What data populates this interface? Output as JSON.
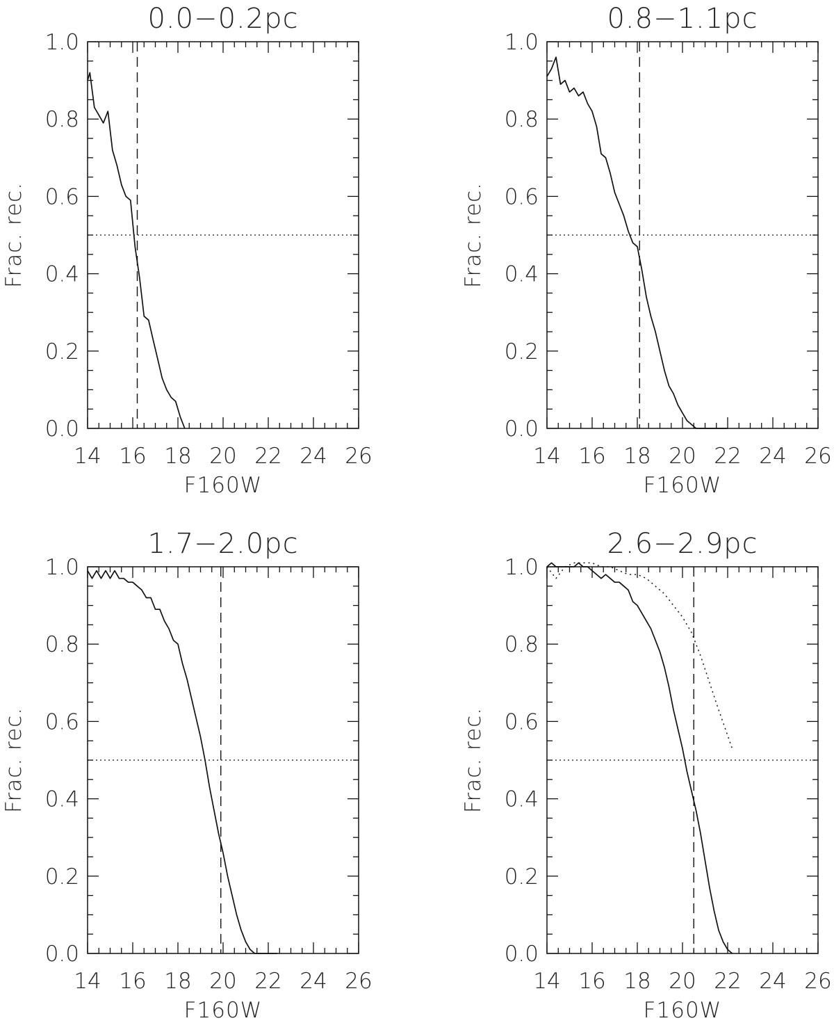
{
  "chart_data": [
    {
      "type": "line",
      "title": "0.0−0.2pc",
      "xlabel": "F160W",
      "ylabel": "Frac. rec.",
      "xlim": [
        14,
        26
      ],
      "ylim": [
        0,
        1.0
      ],
      "xticks": [
        "14",
        "16",
        "18",
        "20",
        "22",
        "24",
        "26"
      ],
      "yticks": [
        "0.0",
        "0.2",
        "0.4",
        "0.6",
        "0.8",
        "1.0"
      ],
      "grid": false,
      "series": [
        {
          "style": "solid",
          "x": [
            14.0,
            14.1,
            14.3,
            14.5,
            14.7,
            14.9,
            15.1,
            15.3,
            15.5,
            15.7,
            15.9,
            16.1,
            16.3,
            16.5,
            16.7,
            16.9,
            17.1,
            17.3,
            17.5,
            17.7,
            17.9,
            18.1,
            18.3
          ],
          "y": [
            0.9,
            0.92,
            0.83,
            0.81,
            0.79,
            0.82,
            0.72,
            0.68,
            0.63,
            0.6,
            0.59,
            0.47,
            0.39,
            0.29,
            0.28,
            0.23,
            0.18,
            0.13,
            0.1,
            0.08,
            0.07,
            0.03,
            0.0
          ]
        }
      ],
      "vline": 16.2,
      "hline": 0.5
    },
    {
      "type": "line",
      "title": "0.8−1.1pc",
      "xlabel": "F160W",
      "ylabel": "Frac. rec.",
      "xlim": [
        14,
        26
      ],
      "ylim": [
        0,
        1.0
      ],
      "xticks": [
        "14",
        "16",
        "18",
        "20",
        "22",
        "24",
        "26"
      ],
      "yticks": [
        "0.0",
        "0.2",
        "0.4",
        "0.6",
        "0.8",
        "1.0"
      ],
      "grid": false,
      "series": [
        {
          "style": "solid",
          "x": [
            14.0,
            14.2,
            14.4,
            14.6,
            14.8,
            15.0,
            15.2,
            15.4,
            15.6,
            15.8,
            16.0,
            16.2,
            16.4,
            16.6,
            16.8,
            17.0,
            17.2,
            17.4,
            17.6,
            17.8,
            18.0,
            18.2,
            18.4,
            18.6,
            18.8,
            19.0,
            19.2,
            19.4,
            19.6,
            19.8,
            20.0,
            20.2,
            20.4,
            20.6,
            20.8,
            21.0,
            21.2,
            21.4,
            21.6,
            21.8,
            22.0
          ],
          "y": [
            0.91,
            0.93,
            0.96,
            0.89,
            0.9,
            0.87,
            0.88,
            0.86,
            0.87,
            0.84,
            0.82,
            0.78,
            0.71,
            0.7,
            0.66,
            0.61,
            0.58,
            0.55,
            0.51,
            0.48,
            0.47,
            0.41,
            0.34,
            0.29,
            0.25,
            0.2,
            0.15,
            0.11,
            0.09,
            0.06,
            0.04,
            0.02,
            0.01,
            0.0,
            0.0,
            0.0,
            0.0,
            0.0,
            0.0,
            0.0,
            0.0
          ]
        }
      ],
      "vline": 18.1,
      "hline": 0.5
    },
    {
      "type": "line",
      "title": "1.7−2.0pc",
      "xlabel": "F160W",
      "ylabel": "Frac. rec.",
      "xlim": [
        14,
        26
      ],
      "ylim": [
        0,
        1.0
      ],
      "xticks": [
        "14",
        "16",
        "18",
        "20",
        "22",
        "24",
        "26"
      ],
      "yticks": [
        "0.0",
        "0.2",
        "0.4",
        "0.6",
        "0.8",
        "1.0"
      ],
      "grid": false,
      "series": [
        {
          "style": "solid",
          "x": [
            14.0,
            14.2,
            14.4,
            14.6,
            14.8,
            15.0,
            15.2,
            15.4,
            15.6,
            15.8,
            16.0,
            16.2,
            16.4,
            16.6,
            16.8,
            17.0,
            17.2,
            17.4,
            17.6,
            17.8,
            18.0,
            18.2,
            18.4,
            18.6,
            18.8,
            19.0,
            19.2,
            19.4,
            19.6,
            19.8,
            20.0,
            20.2,
            20.4,
            20.6,
            20.8,
            21.0,
            21.2,
            21.4,
            21.6,
            21.8,
            22.0,
            22.2,
            22.4
          ],
          "y": [
            0.99,
            0.97,
            0.99,
            0.97,
            0.99,
            0.97,
            0.99,
            0.97,
            0.97,
            0.96,
            0.96,
            0.95,
            0.94,
            0.92,
            0.92,
            0.89,
            0.89,
            0.86,
            0.84,
            0.81,
            0.8,
            0.75,
            0.71,
            0.66,
            0.61,
            0.56,
            0.5,
            0.43,
            0.37,
            0.31,
            0.26,
            0.2,
            0.15,
            0.1,
            0.06,
            0.03,
            0.01,
            0.0,
            0.0,
            0.0,
            0.0,
            0.0,
            0.0
          ]
        }
      ],
      "vline": 19.9,
      "hline": 0.5
    },
    {
      "type": "line",
      "title": "2.6−2.9pc",
      "xlabel": "F160W",
      "ylabel": "Frac. rec.",
      "xlim": [
        14,
        26
      ],
      "ylim": [
        0,
        1.0
      ],
      "xticks": [
        "14",
        "16",
        "18",
        "20",
        "22",
        "24",
        "26"
      ],
      "yticks": [
        "0.0",
        "0.2",
        "0.4",
        "0.6",
        "0.8",
        "1.0"
      ],
      "grid": false,
      "series": [
        {
          "style": "solid",
          "x": [
            14.0,
            14.2,
            14.4,
            14.6,
            14.8,
            15.0,
            15.2,
            15.4,
            15.6,
            15.8,
            16.0,
            16.2,
            16.4,
            16.6,
            16.8,
            17.0,
            17.2,
            17.4,
            17.6,
            17.8,
            18.0,
            18.2,
            18.4,
            18.6,
            18.8,
            19.0,
            19.2,
            19.4,
            19.6,
            19.8,
            20.0,
            20.2,
            20.4,
            20.6,
            20.8,
            21.0,
            21.2,
            21.4,
            21.6,
            21.8,
            22.0,
            22.2
          ],
          "y": [
            1.0,
            1.01,
            1.0,
            1.0,
            1.0,
            1.0,
            1.0,
            1.01,
            1.0,
            1.0,
            0.99,
            0.98,
            0.97,
            0.98,
            0.97,
            0.96,
            0.96,
            0.95,
            0.94,
            0.91,
            0.9,
            0.88,
            0.86,
            0.84,
            0.81,
            0.78,
            0.74,
            0.69,
            0.63,
            0.58,
            0.53,
            0.47,
            0.42,
            0.37,
            0.31,
            0.24,
            0.17,
            0.11,
            0.06,
            0.03,
            0.01,
            0.0
          ]
        },
        {
          "style": "dotted",
          "x": [
            14.0,
            14.4,
            14.8,
            15.2,
            15.6,
            16.0,
            16.4,
            16.8,
            17.2,
            17.6,
            18.0,
            18.4,
            18.8,
            19.2,
            19.6,
            20.0,
            20.4,
            20.8,
            21.2,
            21.6,
            21.9,
            22.2
          ],
          "y": [
            1.0,
            0.97,
            1.0,
            1.01,
            1.01,
            1.01,
            1.0,
            1.0,
            0.99,
            0.98,
            0.98,
            0.97,
            0.95,
            0.93,
            0.9,
            0.87,
            0.83,
            0.77,
            0.7,
            0.63,
            0.58,
            0.53
          ]
        }
      ],
      "vline": 20.5,
      "hline": 0.5
    }
  ]
}
